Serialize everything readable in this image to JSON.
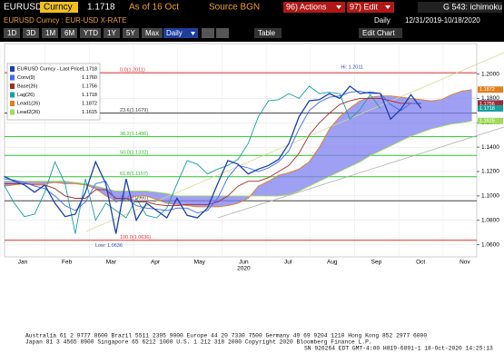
{
  "toolbar": {
    "ticker": "EURUSD",
    "asset": "Curncy",
    "price": "1.1718",
    "as_of": "As of 16 Oct",
    "source": "Source BGN",
    "actions": "96) Actions",
    "edit": "97) Edit",
    "function": "G 543: ichimoku",
    "security": "EURUSD Curncy : EUR-USD X-RATE",
    "period": "Daily",
    "range": "12/31/2019-10/18/2020",
    "buttons": [
      "1D",
      "3D",
      "1M",
      "6M",
      "YTD",
      "1Y",
      "5Y",
      "Max"
    ],
    "frequency": "Daily",
    "table": "Table",
    "edit_chart": "Edit Chart"
  },
  "chart_data": {
    "type": "ichimoku",
    "x": [
      -0.42,
      -0.19,
      0.04,
      0.27,
      0.5,
      0.73,
      0.96,
      1.19,
      1.42,
      1.65,
      1.88,
      2.11,
      2.34,
      2.57,
      2.8,
      3.03,
      3.26,
      3.49,
      3.72,
      3.95,
      4.18,
      4.41,
      4.64,
      4.87,
      5.1,
      5.33,
      5.56,
      5.79,
      6.02,
      6.25,
      6.48,
      6.71,
      6.94,
      7.17,
      7.4,
      7.63,
      7.86,
      8.09,
      8.32,
      8.55,
      8.78,
      9.01,
      9.24,
      9.47,
      9.7,
      9.93,
      10.16
    ],
    "xlim": [
      -0.41,
      10.27
    ],
    "xticks": [
      {
        "value": 0,
        "label": "Jan"
      },
      {
        "value": 1,
        "label": "Feb"
      },
      {
        "value": 2,
        "label": "Mar"
      },
      {
        "value": 3,
        "label": "Apr"
      },
      {
        "value": 4,
        "label": "May"
      },
      {
        "value": 5,
        "label": "Jun"
      },
      {
        "value": 6,
        "label": "Jul"
      },
      {
        "value": 7,
        "label": "Aug"
      },
      {
        "value": 8,
        "label": "Sep"
      },
      {
        "value": 9,
        "label": "Oct"
      },
      {
        "value": 10,
        "label": "Nov"
      }
    ],
    "xlabel": "2020",
    "ylim": [
      1.05,
      1.225
    ],
    "yticks": [
      {
        "value": 1.06,
        "label": "1.0600"
      },
      {
        "value": 1.08,
        "label": "1.0800"
      },
      {
        "value": 1.1,
        "label": "1.1000"
      },
      {
        "value": 1.12,
        "label": "1.1200"
      },
      {
        "value": 1.14,
        "label": "1.1400"
      },
      {
        "value": 1.16,
        "label": "1.1600"
      },
      {
        "value": 1.18,
        "label": "1.1800"
      },
      {
        "value": 1.2,
        "label": "1.2000"
      }
    ],
    "grid": true,
    "series": [
      {
        "name": "EURUSD Curncy - Last Price",
        "color": "#1a3fb0",
        "last": 1.1718,
        "values": [
          1.116,
          1.112,
          1.109,
          1.103,
          1.109,
          1.094,
          1.083,
          1.085,
          1.103,
          1.128,
          1.11,
          1.069,
          1.114,
          1.08,
          1.094,
          1.088,
          1.082,
          1.098,
          1.084,
          1.082,
          1.09,
          1.11,
          1.129,
          1.126,
          1.118,
          1.122,
          1.125,
          1.13,
          1.143,
          1.165,
          1.178,
          1.179,
          1.184,
          1.18,
          1.19,
          1.184,
          1.185,
          1.184,
          1.163,
          1.171,
          1.183,
          1.1718,
          null,
          null,
          null,
          null,
          null
        ]
      },
      {
        "name": "Conv(9)",
        "color": "#3a6cff",
        "last": {
          "value": 1.176,
          "label": "1.1760"
        },
        "values": [
          1.114,
          1.113,
          1.111,
          1.108,
          1.106,
          1.1,
          1.092,
          1.088,
          1.095,
          1.11,
          1.112,
          1.095,
          1.098,
          1.092,
          1.09,
          1.089,
          1.088,
          1.09,
          1.09,
          1.086,
          1.088,
          1.098,
          1.115,
          1.125,
          1.123,
          1.12,
          1.123,
          1.128,
          1.137,
          1.155,
          1.17,
          1.177,
          1.181,
          1.182,
          1.185,
          1.186,
          1.184,
          1.184,
          1.175,
          1.17,
          1.176,
          1.176,
          null,
          null,
          null,
          null,
          null
        ]
      },
      {
        "name": "Base(26)",
        "color": "#a52a2a",
        "last": 1.1756,
        "values": [
          1.11,
          1.11,
          1.11,
          1.109,
          1.109,
          1.106,
          1.1,
          1.098,
          1.098,
          1.105,
          1.105,
          1.098,
          1.098,
          1.095,
          1.095,
          1.093,
          1.092,
          1.092,
          1.093,
          1.093,
          1.093,
          1.095,
          1.1,
          1.108,
          1.112,
          1.112,
          1.115,
          1.12,
          1.125,
          1.135,
          1.15,
          1.16,
          1.168,
          1.175,
          1.178,
          1.18,
          1.18,
          1.18,
          1.178,
          1.176,
          1.176,
          1.1756,
          null,
          null,
          null,
          null,
          null
        ]
      },
      {
        "name": "Lag(26)",
        "color": "#18a0a0",
        "last": 1.1718,
        "values": [
          1.109,
          1.094,
          1.083,
          1.085,
          1.103,
          1.128,
          1.11,
          1.069,
          1.114,
          1.08,
          1.094,
          1.088,
          1.082,
          1.098,
          1.084,
          1.082,
          1.09,
          1.11,
          1.129,
          1.126,
          1.118,
          1.122,
          1.125,
          1.13,
          1.143,
          1.165,
          1.178,
          1.179,
          1.184,
          1.18,
          1.19,
          1.184,
          1.185,
          1.184,
          1.163,
          1.171,
          1.183,
          1.1718,
          null,
          null,
          null,
          null,
          null,
          null,
          null,
          null,
          null
        ]
      },
      {
        "name": "Lead1(26)",
        "color": "#e08020",
        "last": 1.1872,
        "values": [
          1.108,
          1.109,
          1.11,
          1.11,
          1.11,
          1.111,
          1.11,
          1.11,
          1.109,
          1.106,
          1.1,
          1.096,
          1.097,
          1.1,
          1.1,
          1.097,
          1.094,
          1.093,
          1.092,
          1.091,
          1.091,
          1.091,
          1.092,
          1.094,
          1.098,
          1.108,
          1.112,
          1.117,
          1.119,
          1.122,
          1.128,
          1.14,
          1.155,
          1.165,
          1.172,
          1.178,
          1.181,
          1.182,
          1.182,
          1.181,
          1.18,
          1.179,
          1.178,
          1.179,
          1.183,
          1.186,
          1.1872
        ]
      },
      {
        "name": "Lead2(26)",
        "color": "#9fdc5c",
        "last": 1.1615,
        "values": [
          1.112,
          1.112,
          1.112,
          1.112,
          1.112,
          1.112,
          1.112,
          1.111,
          1.11,
          1.108,
          1.106,
          1.104,
          1.104,
          1.104,
          1.104,
          1.103,
          1.102,
          1.1,
          1.1,
          1.1,
          1.1,
          1.1,
          1.1,
          1.1,
          1.1,
          1.1,
          1.1,
          1.1,
          1.101,
          1.104,
          1.108,
          1.112,
          1.116,
          1.12,
          1.124,
          1.128,
          1.133,
          1.137,
          1.141,
          1.145,
          1.149,
          1.152,
          1.155,
          1.157,
          1.159,
          1.16,
          1.1615
        ]
      }
    ],
    "cloud_color": "#7f7fef",
    "fibonacci": [
      {
        "label": "0.0(1.2011)",
        "value": 1.2011,
        "color": "#e03030"
      },
      {
        "label": "23.6(1.1679)",
        "value": 1.1679,
        "color": "#404040"
      },
      {
        "label": "38.2(1.1486)",
        "value": 1.1486,
        "color": "#30c030"
      },
      {
        "label": "50.0(1.1332)",
        "value": 1.1332,
        "color": "#30c030"
      },
      {
        "label": "61.8(1.1157)",
        "value": 1.1157,
        "color": "#30c030"
      },
      {
        "label": "76.4(1.0960)",
        "value": 1.096,
        "color": "#404040"
      },
      {
        "label": "100.0(1.0636)",
        "value": 1.0636,
        "color": "#e03030"
      }
    ],
    "annotations": [
      {
        "text": "Hi: 1.2011",
        "x": 7.45,
        "y": 1.2011
      },
      {
        "text": "Low: 1.0636",
        "x": 1.95,
        "y": 1.0636
      }
    ]
  },
  "footer": [
    "Australia 61 2 9777 8600 Brazil 5511 2395 9000 Europe 44 20 7330 7500 Germany 49 69 9204 1210 Hong Kong 852 2977 6000",
    "Japan 81 3 4565 8900    Singapore 65 6212 1000    U.S. 1 212 318 2000    Copyright 2020 Bloomberg Finance L.P.",
    "SN 926264 EDT  GMT-4:00 H819-6891-1 18-Oct-2020 14:25:13"
  ]
}
